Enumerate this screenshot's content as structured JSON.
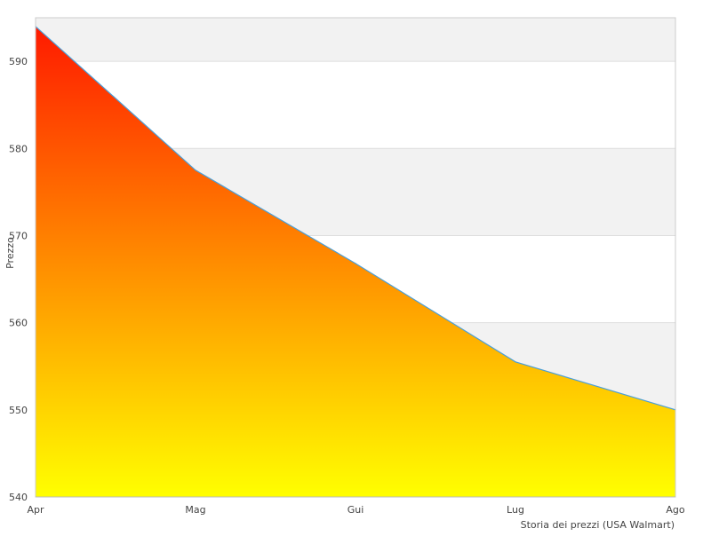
{
  "chart_data": {
    "type": "area",
    "categories": [
      "Apr",
      "Mag",
      "Gui",
      "Lug",
      "Ago"
    ],
    "values": [
      594,
      577.5,
      566.8,
      555.5,
      550
    ],
    "ylabel": "Prezzo",
    "xlabel": "",
    "caption": "Storia dei prezzi (USA Walmart)",
    "ylim": [
      540,
      595
    ],
    "yticks": [
      540,
      550,
      560,
      570,
      580,
      590
    ],
    "grid": true,
    "banded_background": true,
    "colors": {
      "gradient_top": "#ff1a00",
      "gradient_mid": "#ff8c00",
      "gradient_bottom": "#ffff00",
      "line": "#4a9fd8",
      "band": "#f2f2f2",
      "grid": "#dddddd",
      "axis": "#cccccc"
    }
  }
}
